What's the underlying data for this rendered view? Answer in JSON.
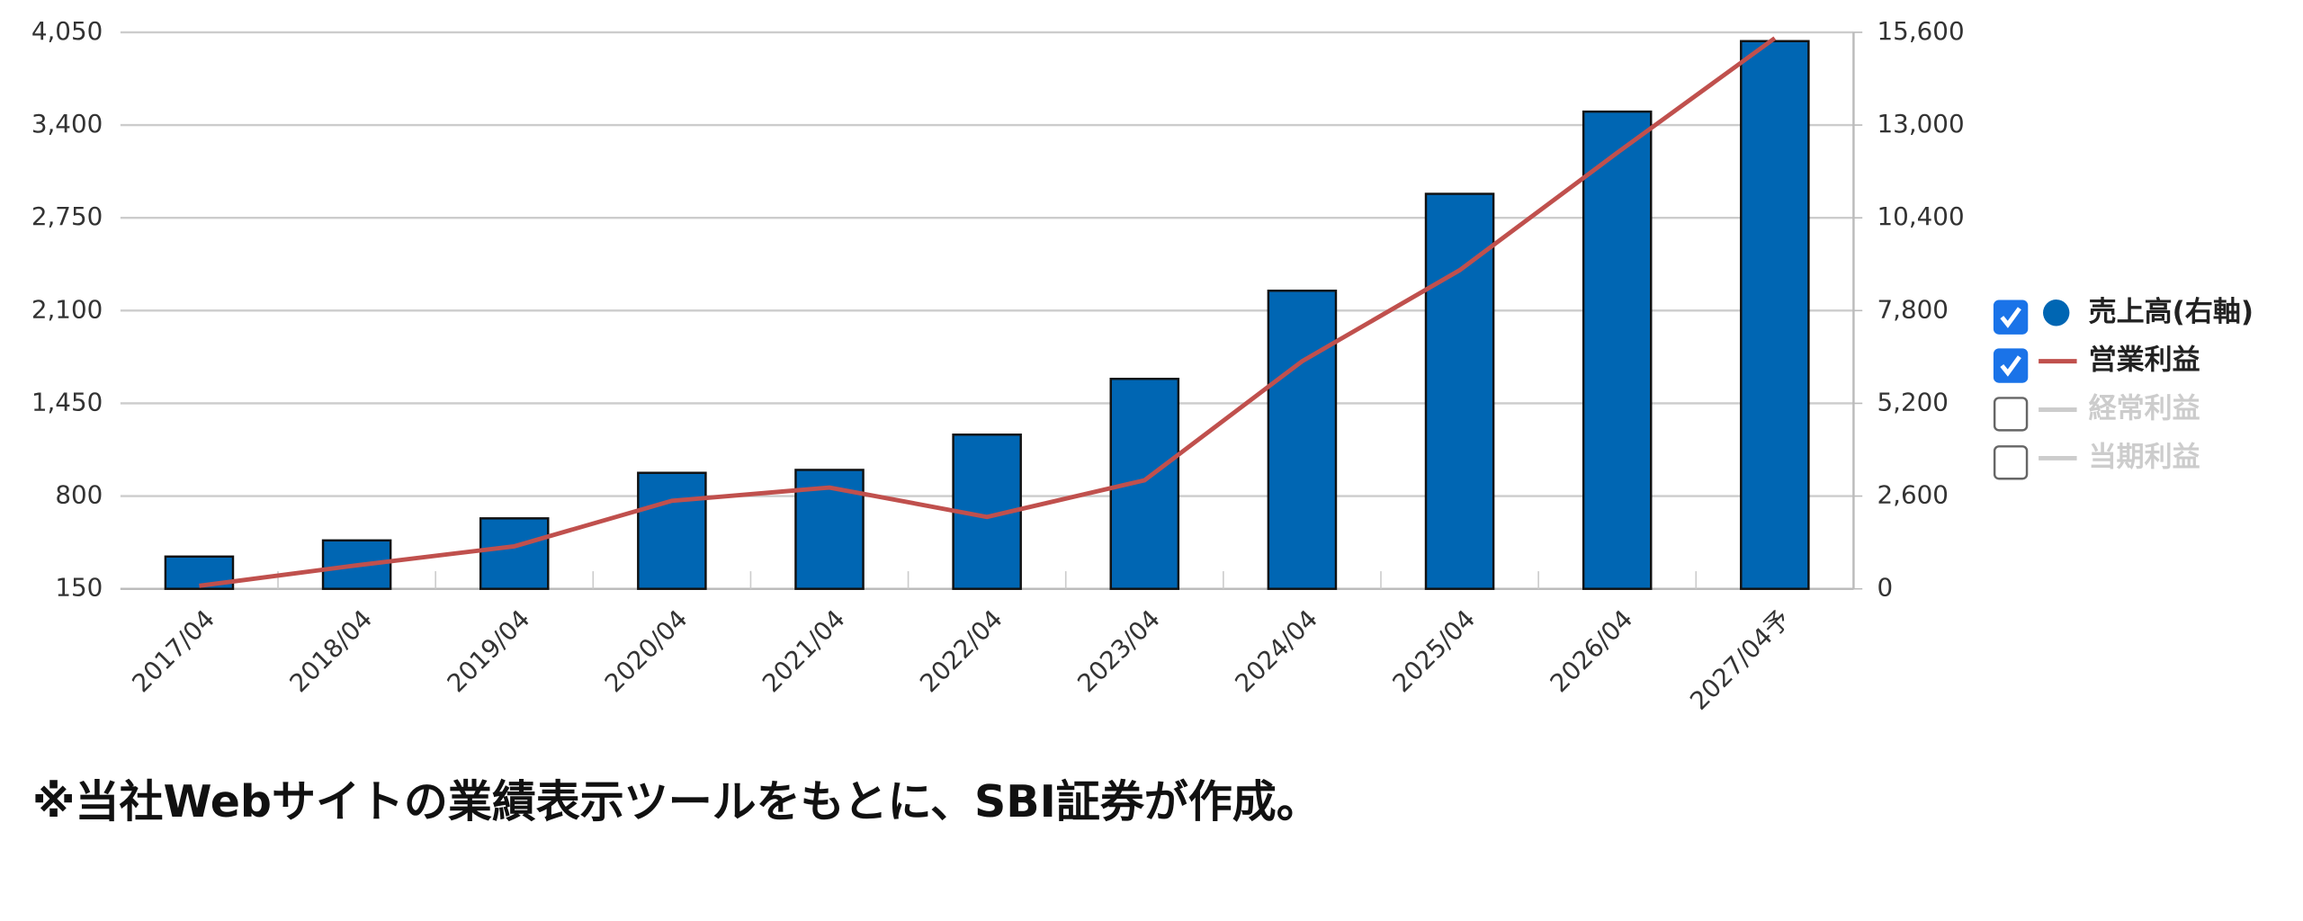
{
  "chart_data": {
    "type": "bar-line",
    "categories": [
      "2017/04",
      "2018/04",
      "2019/04",
      "2020/04",
      "2021/04",
      "2022/04",
      "2023/04",
      "2024/04",
      "2025/04",
      "2026/04",
      "2027/04予"
    ],
    "series": [
      {
        "name": "売上高(右軸)",
        "type": "bar",
        "axis": "y2",
        "color": "#0066b3",
        "values": [
          905,
          1358,
          1976,
          3252,
          3334,
          4322,
          5886,
          8356,
          11072,
          13377,
          15353
        ]
      },
      {
        "name": "営業利益",
        "type": "line",
        "color": "#c0504d",
        "values": [
          171,
          315,
          448,
          767,
          860,
          654,
          911,
          1745,
          2383,
          3206,
          4009
        ]
      }
    ],
    "legend_inactive": [
      "経常利益",
      "当期利益"
    ],
    "ylim": [
      150,
      4050
    ],
    "yticks": [
      150,
      {
        "value": 800,
        "label": "800"
      },
      {
        "value": 1450,
        "label": "1,450"
      },
      {
        "value": 2100,
        "label": "2,100"
      },
      {
        "value": 2750,
        "label": "2,750"
      },
      {
        "value": 3400,
        "label": "3,400"
      },
      {
        "value": 4050,
        "label": "4,050"
      }
    ],
    "y2lim": [
      0,
      15600
    ],
    "y2ticks": [
      0,
      {
        "value": 2600,
        "label": "2,600"
      },
      {
        "value": 5200,
        "label": "5,200"
      },
      {
        "value": 7800,
        "label": "7,800"
      },
      {
        "value": 10400,
        "label": "10,400"
      },
      {
        "value": 13000,
        "label": "13,000"
      },
      {
        "value": 15600,
        "label": "15,600"
      }
    ],
    "grid": true,
    "legend": "right",
    "note": "※当社Webサイトの業績表示ツールをもとに、SBI証券が作成。"
  }
}
